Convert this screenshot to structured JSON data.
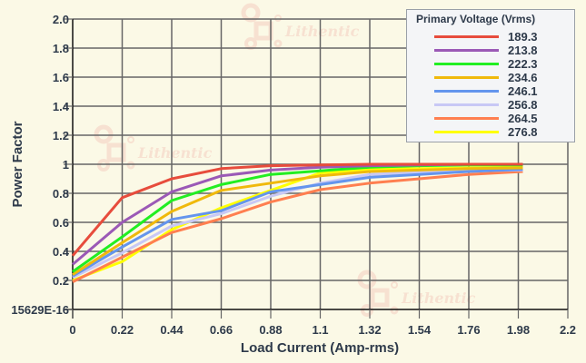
{
  "chart_data": {
    "type": "line",
    "title": "",
    "xlabel": "Load Current (Amp-rms)",
    "ylabel": "Power Factor",
    "xlim": [
      0,
      2.2
    ],
    "ylim": [
      0,
      2.0
    ],
    "grid": true,
    "legend_position": "top-right",
    "legend_title": "Primary Voltage (Vrms)",
    "x_ticks": [
      0,
      0.22,
      0.44,
      0.66,
      0.88,
      1.1,
      1.32,
      1.54,
      1.76,
      1.98,
      2.2
    ],
    "x_tick_labels": [
      "0",
      "0.22",
      "0.44",
      "0.66",
      "0.88",
      "1.1",
      "1.32",
      "1.54",
      "1.76",
      "1.98",
      "2.2"
    ],
    "y_ticks": [
      0,
      0.2,
      0.4,
      0.6,
      0.8,
      1,
      1.2,
      1.4,
      1.6,
      1.8,
      2.0
    ],
    "y_tick_labels": [
      "15629E-16",
      "0.2",
      "0.4",
      "0.6",
      "0.8",
      "1",
      "1.2",
      "1.4",
      "1.6",
      "1.8",
      "2.0"
    ],
    "x": [
      0,
      0.22,
      0.44,
      0.66,
      0.88,
      1.1,
      1.32,
      1.54,
      1.76,
      2.0
    ],
    "series": [
      {
        "name": "189.3",
        "color": "#e74c3c",
        "values": [
          0.37,
          0.77,
          0.9,
          0.97,
          0.99,
          0.995,
          1.0,
          1.0,
          1.0,
          1.0
        ]
      },
      {
        "name": "213.8",
        "color": "#9b59b6",
        "values": [
          0.31,
          0.6,
          0.81,
          0.92,
          0.96,
          0.98,
          0.99,
          0.995,
          1.0,
          1.0
        ]
      },
      {
        "name": "222.3",
        "color": "#22ee22",
        "values": [
          0.26,
          0.5,
          0.75,
          0.86,
          0.93,
          0.955,
          0.98,
          0.99,
          0.995,
          0.995
        ]
      },
      {
        "name": "234.6",
        "color": "#f0b90b",
        "values": [
          0.24,
          0.46,
          0.675,
          0.82,
          0.87,
          0.92,
          0.95,
          0.96,
          0.97,
          0.975
        ]
      },
      {
        "name": "246.1",
        "color": "#6495ed",
        "values": [
          0.23,
          0.43,
          0.62,
          0.68,
          0.81,
          0.86,
          0.91,
          0.93,
          0.95,
          0.965
        ]
      },
      {
        "name": "256.8",
        "color": "#c8c8f5",
        "values": [
          0.22,
          0.39,
          0.575,
          0.66,
          0.78,
          0.87,
          0.93,
          0.945,
          0.955,
          0.96
        ]
      },
      {
        "name": "264.5",
        "color": "#ff7f50",
        "values": [
          0.19,
          0.36,
          0.53,
          0.625,
          0.74,
          0.825,
          0.87,
          0.9,
          0.93,
          0.95
        ]
      },
      {
        "name": "276.8",
        "color": "#ffff00",
        "values": [
          0.2,
          0.33,
          0.55,
          0.7,
          0.82,
          0.94,
          0.965,
          0.97,
          0.975,
          0.98
        ]
      }
    ],
    "watermark": "Lithentic"
  },
  "legend": {
    "title": "Primary Voltage (Vrms)",
    "items": [
      {
        "label": "189.3"
      },
      {
        "label": "213.8"
      },
      {
        "label": "222.3"
      },
      {
        "label": "234.6"
      },
      {
        "label": "246.1"
      },
      {
        "label": "256.8"
      },
      {
        "label": "264.5"
      },
      {
        "label": "276.8"
      }
    ]
  },
  "colors": {
    "background": "#fbf9e6",
    "grid": "#666666",
    "axis": "#111111",
    "text": "#2e3a4a",
    "watermark": "#f7dfcf"
  }
}
